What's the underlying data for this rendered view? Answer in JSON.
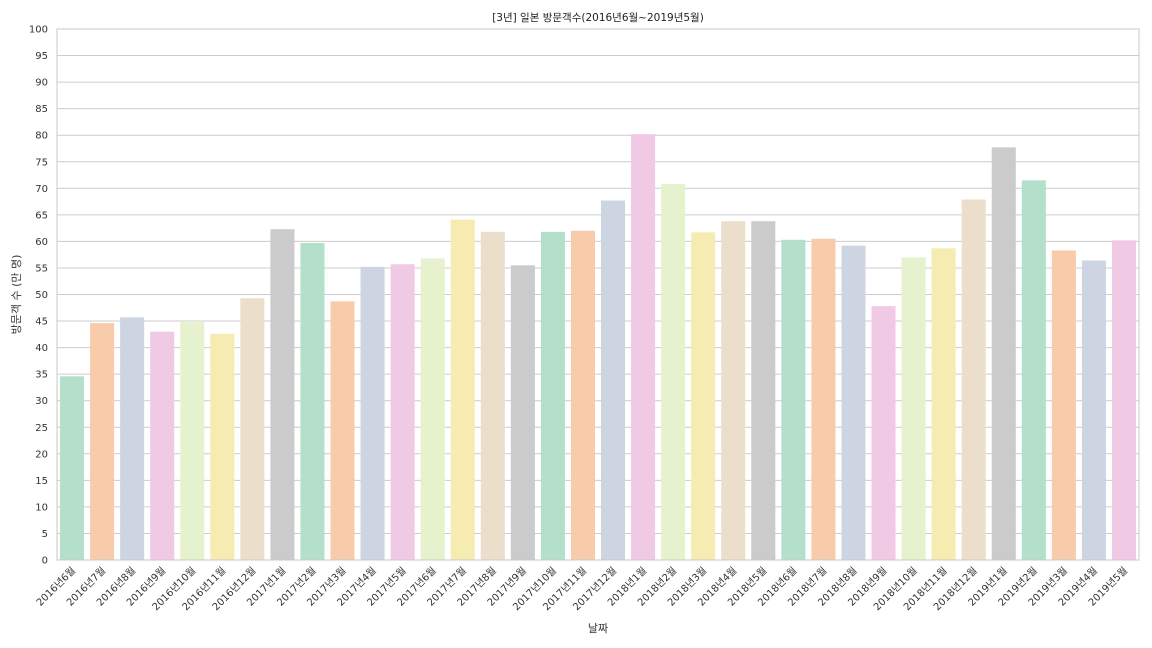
{
  "chart_data": {
    "type": "bar",
    "title": "[3년] 일본 방문객수(2016년6월~2019년5월)",
    "xlabel": "날짜",
    "ylabel": "방문객 수 (만 명)",
    "ylim": [
      0,
      100
    ],
    "yticks": [
      0,
      5,
      10,
      15,
      20,
      25,
      30,
      35,
      40,
      45,
      50,
      55,
      60,
      65,
      70,
      75,
      80,
      85,
      90,
      95,
      100
    ],
    "grid": "horizontal",
    "categories": [
      "2016년6월",
      "2016년7월",
      "2016년8월",
      "2016년9월",
      "2016년10월",
      "2016년11월",
      "2016년12월",
      "2017년1월",
      "2017년2월",
      "2017년3월",
      "2017년4월",
      "2017년5월",
      "2017년6월",
      "2017년7월",
      "2017년8월",
      "2017년9월",
      "2017년10월",
      "2017년11월",
      "2017년12월",
      "2018년1월",
      "2018년2월",
      "2018년3월",
      "2018년4월",
      "2018년5월",
      "2018년6월",
      "2018년7월",
      "2018년8월",
      "2018년9월",
      "2018년10월",
      "2018년11월",
      "2018년12월",
      "2019년1월",
      "2019년2월",
      "2019년3월",
      "2019년4월",
      "2019년5월"
    ],
    "values": [
      34.6,
      44.6,
      45.7,
      43.0,
      44.8,
      42.6,
      49.3,
      62.3,
      59.7,
      48.7,
      55.2,
      55.7,
      56.8,
      64.1,
      61.8,
      55.5,
      61.8,
      62.0,
      67.7,
      80.2,
      70.8,
      61.7,
      63.8,
      63.8,
      60.3,
      60.5,
      59.2,
      47.8,
      57.0,
      58.7,
      67.9,
      77.7,
      71.5,
      58.3,
      56.4,
      60.2
    ],
    "palette": [
      "#b3dfcb",
      "#f8cbaa",
      "#cdd5e3",
      "#f0c9e4",
      "#e5f2cd",
      "#f6ebb1",
      "#ebdfcc",
      "#cbcbcb"
    ]
  }
}
